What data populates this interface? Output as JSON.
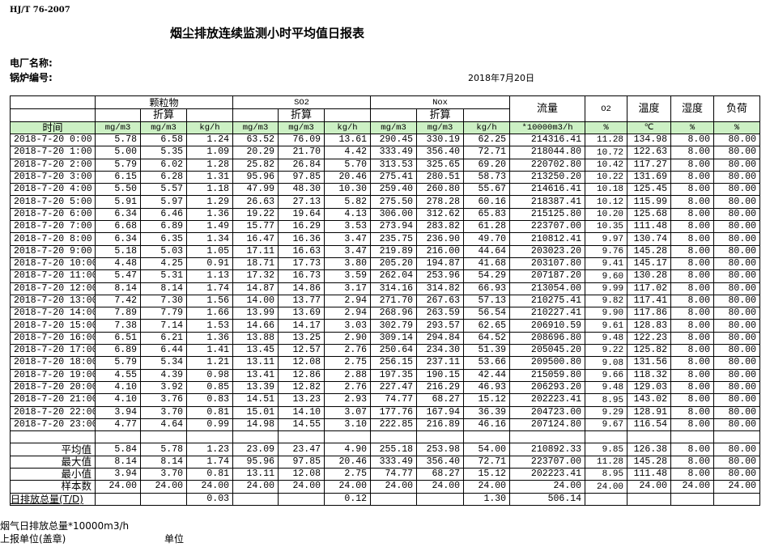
{
  "header": {
    "standard": "HJ/T  76-2007",
    "title": "烟尘排放连续监测小时平均值日报表",
    "plant_label": "电厂名称:",
    "boiler_label": "锅炉编号:",
    "date": "2018年7月20日"
  },
  "table": {
    "groups": {
      "particles": "颗粒物",
      "so2": "SO2",
      "nox": "Nox",
      "flow": "流量",
      "o2": "O2",
      "temp": "温度",
      "humidity": "湿度",
      "load": "负荷"
    },
    "converted": "折算",
    "units": [
      "时间",
      "mg/m3",
      "mg/m3",
      "kg/h",
      "mg/m3",
      "mg/m3",
      "kg/h",
      "mg/m3",
      "mg/m3",
      "kg/h",
      "*10000m3/h",
      "%",
      "℃",
      "%",
      "%"
    ],
    "highlight_color": "#ccf0c4",
    "rows": [
      [
        "2018-7-20 0:00",
        "5.78",
        "6.58",
        "1.24",
        "63.52",
        "76.09",
        "13.61",
        "290.45",
        "330.19",
        "62.25",
        "214316.41",
        "11.28",
        "134.98",
        "8.00",
        "80.00"
      ],
      [
        "2018-7-20 1:00",
        "5.00",
        "5.35",
        "1.09",
        "20.29",
        "21.70",
        "4.42",
        "333.49",
        "356.40",
        "72.71",
        "218044.80",
        "10.72",
        "122.63",
        "8.00",
        "80.00"
      ],
      [
        "2018-7-20 2:00",
        "5.79",
        "6.02",
        "1.28",
        "25.82",
        "26.84",
        "5.70",
        "313.53",
        "325.65",
        "69.20",
        "220702.80",
        "10.42",
        "117.27",
        "8.00",
        "80.00"
      ],
      [
        "2018-7-20 3:00",
        "6.15",
        "6.28",
        "1.31",
        "95.96",
        "97.85",
        "20.46",
        "275.41",
        "280.51",
        "58.73",
        "213250.20",
        "10.22",
        "131.69",
        "8.00",
        "80.00"
      ],
      [
        "2018-7-20 4:00",
        "5.50",
        "5.57",
        "1.18",
        "47.99",
        "48.30",
        "10.30",
        "259.40",
        "260.80",
        "55.67",
        "214616.41",
        "10.18",
        "125.45",
        "8.00",
        "80.00"
      ],
      [
        "2018-7-20 5:00",
        "5.91",
        "5.97",
        "1.29",
        "26.63",
        "27.13",
        "5.82",
        "275.50",
        "278.28",
        "60.16",
        "218387.41",
        "10.12",
        "115.99",
        "8.00",
        "80.00"
      ],
      [
        "2018-7-20 6:00",
        "6.34",
        "6.46",
        "1.36",
        "19.22",
        "19.64",
        "4.13",
        "306.00",
        "312.62",
        "65.83",
        "215125.80",
        "10.20",
        "125.68",
        "8.00",
        "80.00"
      ],
      [
        "2018-7-20 7:00",
        "6.68",
        "6.89",
        "1.49",
        "15.77",
        "16.29",
        "3.53",
        "273.94",
        "283.82",
        "61.28",
        "223707.00",
        "10.35",
        "111.48",
        "8.00",
        "80.00"
      ],
      [
        "2018-7-20 8:00",
        "6.34",
        "6.35",
        "1.34",
        "16.47",
        "16.36",
        "3.47",
        "235.75",
        "236.90",
        "49.70",
        "210812.41",
        "9.97",
        "130.74",
        "8.00",
        "80.00"
      ],
      [
        "2018-7-20 9:00",
        "5.18",
        "5.03",
        "1.05",
        "17.11",
        "16.63",
        "3.47",
        "219.89",
        "216.00",
        "44.64",
        "203023.20",
        "9.76",
        "145.28",
        "8.00",
        "80.00"
      ],
      [
        "2018-7-20 10:00",
        "4.48",
        "4.25",
        "0.91",
        "18.71",
        "17.73",
        "3.80",
        "205.20",
        "194.87",
        "41.68",
        "203107.80",
        "9.41",
        "145.17",
        "8.00",
        "80.00"
      ],
      [
        "2018-7-20 11:00",
        "5.47",
        "5.31",
        "1.13",
        "17.32",
        "16.73",
        "3.59",
        "262.04",
        "253.96",
        "54.29",
        "207187.20",
        "9.60",
        "130.28",
        "8.00",
        "80.00"
      ],
      [
        "2018-7-20 12:00",
        "8.14",
        "8.14",
        "1.74",
        "14.87",
        "14.86",
        "3.17",
        "314.16",
        "314.82",
        "66.93",
        "213054.00",
        "9.99",
        "117.02",
        "8.00",
        "80.00"
      ],
      [
        "2018-7-20 13:00",
        "7.42",
        "7.30",
        "1.56",
        "14.00",
        "13.77",
        "2.94",
        "271.70",
        "267.63",
        "57.13",
        "210275.41",
        "9.82",
        "117.41",
        "8.00",
        "80.00"
      ],
      [
        "2018-7-20 14:00",
        "7.89",
        "7.79",
        "1.66",
        "13.99",
        "13.69",
        "2.94",
        "268.96",
        "263.59",
        "56.54",
        "210227.41",
        "9.90",
        "117.86",
        "8.00",
        "80.00"
      ],
      [
        "2018-7-20 15:00",
        "7.38",
        "7.14",
        "1.53",
        "14.66",
        "14.17",
        "3.03",
        "302.79",
        "293.57",
        "62.65",
        "206910.59",
        "9.61",
        "128.83",
        "8.00",
        "80.00"
      ],
      [
        "2018-7-20 16:00",
        "6.51",
        "6.21",
        "1.36",
        "13.88",
        "13.25",
        "2.90",
        "309.14",
        "294.84",
        "64.52",
        "208696.80",
        "9.48",
        "122.23",
        "8.00",
        "80.00"
      ],
      [
        "2018-7-20 17:00",
        "6.89",
        "6.44",
        "1.41",
        "13.45",
        "12.57",
        "2.76",
        "250.64",
        "234.30",
        "51.39",
        "205045.20",
        "9.22",
        "125.82",
        "8.00",
        "80.00"
      ],
      [
        "2018-7-20 18:00",
        "5.79",
        "5.34",
        "1.21",
        "13.11",
        "12.08",
        "2.75",
        "256.15",
        "237.11",
        "53.66",
        "209500.80",
        "9.08",
        "131.56",
        "8.00",
        "80.00"
      ],
      [
        "2018-7-20 19:00",
        "4.55",
        "4.39",
        "0.98",
        "13.41",
        "12.86",
        "2.88",
        "197.35",
        "190.15",
        "42.44",
        "215059.80",
        "9.66",
        "118.32",
        "8.00",
        "80.00"
      ],
      [
        "2018-7-20 20:00",
        "4.10",
        "3.92",
        "0.85",
        "13.39",
        "12.82",
        "2.76",
        "227.47",
        "216.29",
        "46.93",
        "206293.20",
        "9.48",
        "129.03",
        "8.00",
        "80.00"
      ],
      [
        "2018-7-20 21:00",
        "4.10",
        "3.76",
        "0.83",
        "14.51",
        "13.23",
        "2.93",
        "74.77",
        "68.27",
        "15.12",
        "202223.41",
        "8.95",
        "143.02",
        "8.00",
        "80.00"
      ],
      [
        "2018-7-20 22:00",
        "3.94",
        "3.70",
        "0.81",
        "15.01",
        "14.10",
        "3.07",
        "177.76",
        "167.94",
        "36.39",
        "204723.00",
        "9.29",
        "128.91",
        "8.00",
        "80.00"
      ],
      [
        "2018-7-20 23:00",
        "4.77",
        "4.64",
        "0.99",
        "14.98",
        "14.55",
        "3.10",
        "222.85",
        "216.89",
        "46.16",
        "207124.80",
        "9.67",
        "116.54",
        "8.00",
        "80.00"
      ]
    ],
    "summary": [
      [
        "平均值",
        "5.84",
        "5.78",
        "1.23",
        "23.09",
        "23.47",
        "4.90",
        "255.18",
        "253.98",
        "54.00",
        "210892.33",
        "9.85",
        "126.38",
        "8.00",
        "80.00"
      ],
      [
        "最大值",
        "8.14",
        "8.14",
        "1.74",
        "95.96",
        "97.85",
        "20.46",
        "333.49",
        "356.40",
        "72.71",
        "223707.00",
        "11.28",
        "145.28",
        "8.00",
        "80.00"
      ],
      [
        "最小值",
        "3.94",
        "3.70",
        "0.81",
        "13.11",
        "12.08",
        "2.75",
        "74.77",
        "68.27",
        "15.12",
        "202223.41",
        "8.95",
        "111.48",
        "8.00",
        "80.00"
      ],
      [
        "样本数",
        "24.00",
        "24.00",
        "24.00",
        "24.00",
        "24.00",
        "24.00",
        "24.00",
        "24.00",
        "24.00",
        "24.00",
        "24.00",
        "24.00",
        "24.00",
        "24.00"
      ]
    ],
    "daily_total": [
      "日排放总量(T/D)",
      "",
      "",
      "0.03",
      "",
      "",
      "0.12",
      "",
      "",
      "1.30",
      "506.14",
      "",
      "",
      "",
      ""
    ]
  },
  "footer": {
    "flue_gas_total": "烟气日排放总量*10000m3/h",
    "reporting_unit": "上报单位(盖章)",
    "unit": "单位"
  }
}
